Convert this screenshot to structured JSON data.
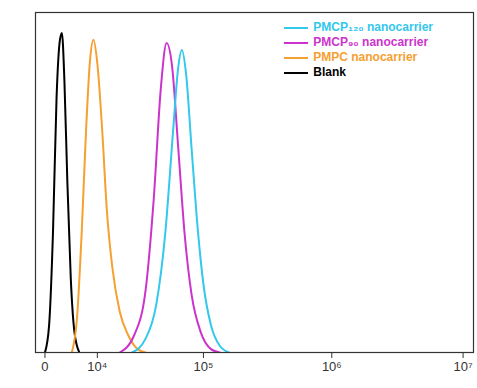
{
  "chart_data": {
    "type": "line",
    "log": "x",
    "tick_labels": "x",
    "legend": "top-right",
    "xlim": [
      -1200,
      12000000
    ],
    "ylim": [
      0,
      100
    ],
    "xticks": [
      {
        "value": 0,
        "label": "0"
      },
      {
        "value": 10000,
        "label": "10⁴"
      },
      {
        "value": 100000,
        "label": "10⁵"
      },
      {
        "value": 1000000,
        "label": "10⁶"
      },
      {
        "value": 10000000,
        "label": "10⁷"
      }
    ],
    "series": [
      {
        "name": "PMCP₁₂₀ nanocarrier",
        "color": "#33c8ec",
        "x": [
          24000,
          32000,
          40000,
          48000,
          56000,
          62000,
          66400,
          72000,
          80000,
          90000,
          100000,
          115000,
          135000,
          160000
        ],
        "values": [
          0,
          4,
          14,
          35,
          65,
          84,
          89,
          82,
          60,
          36,
          20,
          8,
          2,
          0
        ]
      },
      {
        "name": "PMCP₉₀ nanocarrier",
        "color": "#cc33cc",
        "x": [
          18000,
          25000,
          32000,
          38000,
          44000,
          49300,
          55000,
          62000,
          70000,
          80000,
          95000,
          115000,
          135000
        ],
        "values": [
          0,
          5,
          18,
          45,
          78,
          91,
          84,
          60,
          35,
          17,
          6,
          1,
          0
        ]
      },
      {
        "name": "PMPC nanocarrier",
        "color": "#f5a030",
        "x": [
          4000,
          5000,
          6000,
          7000,
          8000,
          8900,
          10000,
          11500,
          13000,
          15000,
          18000,
          22000,
          27000,
          32000
        ],
        "values": [
          0,
          10,
          35,
          65,
          86,
          92,
          85,
          65,
          42,
          25,
          12,
          5,
          1,
          0
        ]
      },
      {
        "name": "Blank",
        "color": "#000000",
        "x": [
          0,
          500,
          1000,
          1500,
          2000,
          2300,
          2700,
          3200,
          3800,
          4500,
          5500
        ],
        "values": [
          0,
          8,
          35,
          75,
          92,
          94,
          80,
          50,
          22,
          6,
          0
        ]
      }
    ]
  }
}
